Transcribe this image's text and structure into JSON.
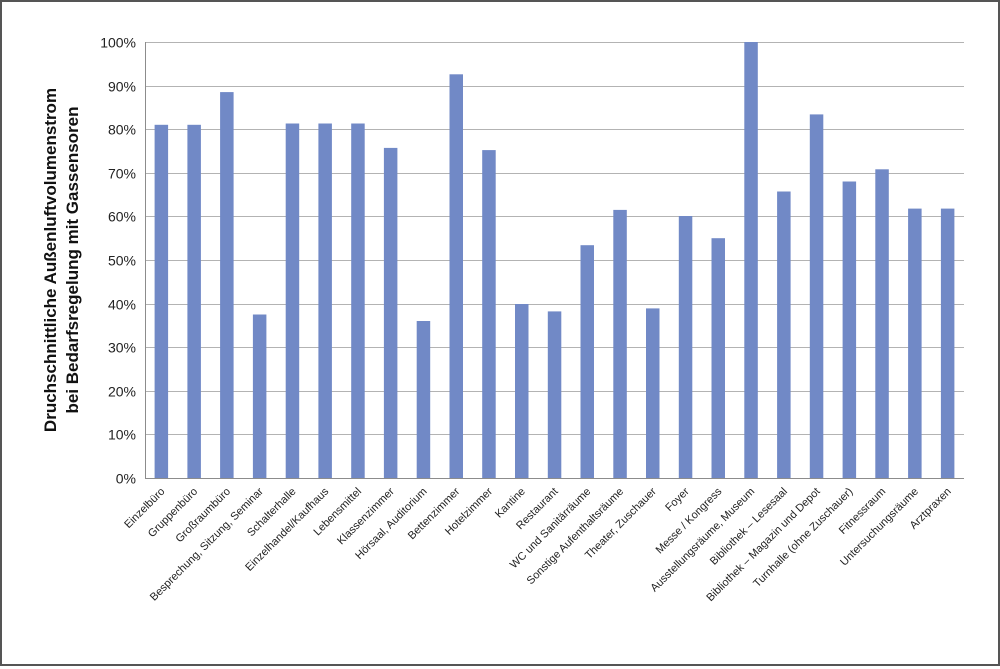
{
  "chart_data": {
    "type": "bar",
    "title": "",
    "xlabel": "",
    "ylabel": [
      "Druchschnittliche Außenluftvolumenstrom",
      "bei Bedarfsregelung mit Gassensoren"
    ],
    "ylim": [
      0,
      100
    ],
    "yticks": [
      0,
      10,
      20,
      30,
      40,
      50,
      60,
      70,
      80,
      90,
      100
    ],
    "ytick_labels": [
      "0%",
      "10%",
      "20%",
      "30%",
      "40%",
      "50%",
      "60%",
      "70%",
      "80%",
      "90%",
      "100%"
    ],
    "grid": true,
    "legend": "none",
    "bar_color": "#7189c6",
    "categories": [
      "Einzelbüro",
      "Gruppenbüro",
      "Großraumbüro",
      "Besprechung, Sitzung, Seminar",
      "Schalterhalle",
      "Einzelhandel/Kaufhaus",
      "Lebensmittel",
      "Klassenzimmer",
      "Hörsaal, Auditorium",
      "Bettenzimmer",
      "Hotelzimmer",
      "Kantine",
      "Restaurant",
      "WC und Sanitärräume",
      "Sonstige Aufenthaltsräume",
      "Theater, Zuschauer",
      "Foyer",
      "Messe / Kongress",
      "Ausstellungsräume, Museum",
      "Bibliothek – Lesesaal",
      "Bibliothek – Magazin und Depot",
      "Turnhalle (ohne Zuschauer)",
      "Fitnessraum",
      "Untersuchungsräume",
      "Arztpraxen"
    ],
    "values": [
      81,
      81,
      88.5,
      37.5,
      81.3,
      81.3,
      81.3,
      75.7,
      36,
      92.6,
      75.2,
      39.9,
      38.2,
      53.4,
      61.5,
      38.9,
      60.1,
      55,
      100,
      65.7,
      83.4,
      68,
      70.8,
      61.8,
      61.8
    ]
  }
}
